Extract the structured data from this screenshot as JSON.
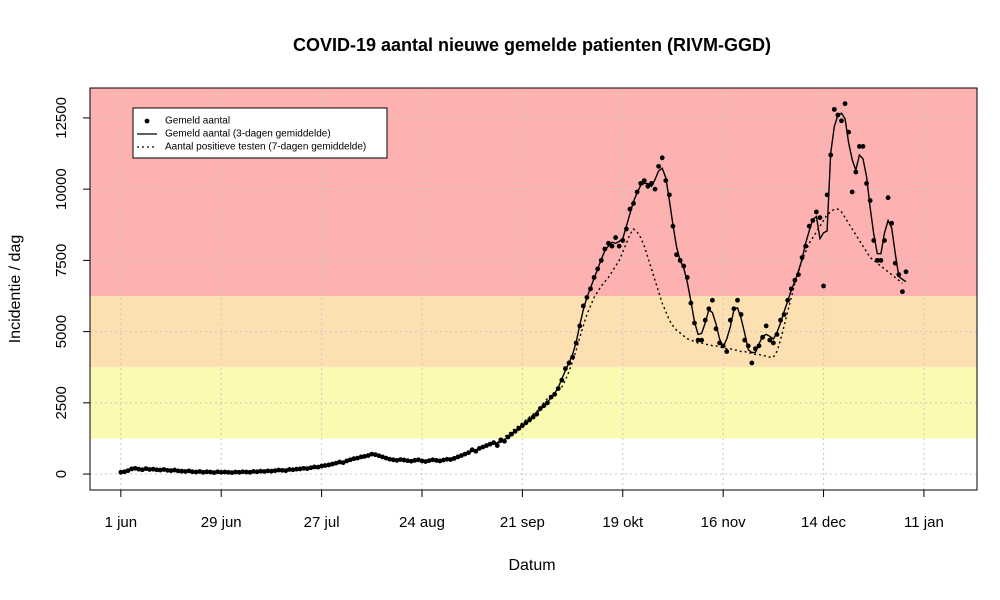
{
  "chart_data": {
    "type": "line",
    "title": "COVID-19 aantal nieuwe gemelde patienten  (RIVM-GGD)",
    "x_label": "Datum",
    "y_label": "Incidentie / dag",
    "xlim": [
      -8.6,
      238.8
    ],
    "ylim": [
      -560,
      13550
    ],
    "xticks": [
      {
        "value": 0,
        "label": "1 jun"
      },
      {
        "value": 28,
        "label": "29 jun"
      },
      {
        "value": 56,
        "label": "27 jul"
      },
      {
        "value": 84,
        "label": "24 aug"
      },
      {
        "value": 112,
        "label": "21 sep"
      },
      {
        "value": 140,
        "label": "19 okt"
      },
      {
        "value": 168,
        "label": "16 nov"
      },
      {
        "value": 196,
        "label": "14 dec"
      },
      {
        "value": 224,
        "label": "11 jan"
      }
    ],
    "yticks": [
      0,
      2500,
      5000,
      7500,
      10000,
      12500
    ],
    "grid": true,
    "legend": "top-left",
    "bands": [
      {
        "from": 1250,
        "color": "#fafab0"
      },
      {
        "from": 3750,
        "color": "#fde0b1"
      },
      {
        "from": 6250,
        "color": "#fdb1b1"
      }
    ],
    "x": [
      0,
      1,
      2,
      3,
      4,
      5,
      6,
      7,
      8,
      9,
      10,
      11,
      12,
      13,
      14,
      15,
      16,
      17,
      18,
      19,
      20,
      21,
      22,
      23,
      24,
      25,
      26,
      27,
      28,
      29,
      30,
      31,
      32,
      33,
      34,
      35,
      36,
      37,
      38,
      39,
      40,
      41,
      42,
      43,
      44,
      45,
      46,
      47,
      48,
      49,
      50,
      51,
      52,
      53,
      54,
      55,
      56,
      57,
      58,
      59,
      60,
      61,
      62,
      63,
      64,
      65,
      66,
      67,
      68,
      69,
      70,
      71,
      72,
      73,
      74,
      75,
      76,
      77,
      78,
      79,
      80,
      81,
      82,
      83,
      84,
      85,
      86,
      87,
      88,
      89,
      90,
      91,
      92,
      93,
      94,
      95,
      96,
      97,
      98,
      99,
      100,
      101,
      102,
      103,
      104,
      105,
      106,
      107,
      108,
      109,
      110,
      111,
      112,
      113,
      114,
      115,
      116,
      117,
      118,
      119,
      120,
      121,
      122,
      123,
      124,
      125,
      126,
      127,
      128,
      129,
      130,
      131,
      132,
      133,
      134,
      135,
      136,
      137,
      138,
      139,
      140,
      141,
      142,
      143,
      144,
      145,
      146,
      147,
      148,
      149,
      150,
      151,
      152,
      153,
      154,
      155,
      156,
      157,
      158,
      159,
      160,
      161,
      162,
      163,
      164,
      165,
      166,
      167,
      168,
      169,
      170,
      171,
      172,
      173,
      174,
      175,
      176,
      177,
      178,
      179,
      180,
      181,
      182,
      183,
      184,
      185,
      186,
      187,
      188,
      189,
      190,
      191,
      192,
      193,
      194,
      195,
      196,
      197,
      198,
      199,
      200,
      201,
      202,
      203,
      204,
      205,
      206,
      207,
      208,
      209,
      210,
      211,
      212,
      213,
      214,
      215,
      216,
      217,
      218,
      219
    ],
    "series": [
      {
        "name": "Gemeld aantal",
        "mode": "points",
        "color": "#000000",
        "values": [
          60,
          80,
          120,
          180,
          200,
          170,
          150,
          190,
          160,
          170,
          150,
          140,
          160,
          130,
          120,
          140,
          110,
          100,
          90,
          110,
          80,
          70,
          90,
          60,
          80,
          70,
          50,
          80,
          60,
          70,
          60,
          50,
          70,
          60,
          80,
          70,
          60,
          90,
          80,
          100,
          90,
          110,
          100,
          120,
          140,
          130,
          120,
          160,
          150,
          170,
          180,
          200,
          190,
          220,
          250,
          240,
          280,
          300,
          320,
          350,
          380,
          420,
          400,
          460,
          500,
          540,
          560,
          600,
          620,
          650,
          700,
          680,
          640,
          600,
          560,
          520,
          500,
          480,
          510,
          490,
          470,
          450,
          480,
          500,
          460,
          440,
          470,
          500,
          480,
          460,
          490,
          520,
          510,
          550,
          600,
          650,
          700,
          750,
          850,
          800,
          900,
          950,
          1000,
          1050,
          1100,
          1000,
          1200,
          1150,
          1300,
          1400,
          1500,
          1600,
          1700,
          1800,
          1900,
          2000,
          2100,
          2300,
          2400,
          2500,
          2700,
          2800,
          3000,
          3300,
          3700,
          3900,
          4100,
          4600,
          5200,
          5900,
          6200,
          6500,
          6900,
          7200,
          7500,
          7900,
          8100,
          8000,
          8300,
          8000,
          8200,
          8600,
          9300,
          9500,
          9900,
          10200,
          10300,
          10100,
          10200,
          10000,
          10800,
          11100,
          10300,
          9800,
          8700,
          7700,
          7500,
          7300,
          6900,
          6000,
          5300,
          4700,
          4700,
          5400,
          5800,
          6100,
          5100,
          4600,
          4500,
          4300,
          5400,
          5800,
          6100,
          5600,
          4700,
          4500,
          3900,
          4400,
          4500,
          4800,
          5200,
          4700,
          4600,
          4900,
          5400,
          5600,
          6100,
          6500,
          6800,
          7000,
          7600,
          8000,
          8700,
          8900,
          9200,
          9000,
          6600,
          9800,
          11200,
          12800,
          12600,
          12400,
          13000,
          12000,
          9900,
          10600,
          11500,
          11500,
          10200,
          9600,
          8200,
          7500,
          7500,
          8200,
          9700,
          8800,
          7400,
          7000,
          6400,
          7100
        ]
      },
      {
        "name": "Gemeld aantal (3-dagen gemiddelde)",
        "mode": "solid",
        "color": "#000000",
        "values": [
          85,
          120,
          160,
          185,
          185,
          170,
          170,
          165,
          175,
          160,
          155,
          150,
          145,
          135,
          130,
          125,
          115,
          100,
          100,
          95,
          85,
          80,
          75,
          75,
          70,
          65,
          65,
          65,
          70,
          65,
          60,
          60,
          60,
          70,
          70,
          70,
          75,
          75,
          90,
          90,
          100,
          100,
          110,
          120,
          130,
          130,
          135,
          145,
          160,
          165,
          185,
          190,
          205,
          220,
          245,
          255,
          275,
          300,
          325,
          350,
          385,
          400,
          425,
          455,
          500,
          535,
          565,
          595,
          625,
          655,
          675,
          675,
          640,
          600,
          560,
          525,
          500,
          495,
          495,
          490,
          470,
          465,
          475,
          480,
          465,
          455,
          470,
          485,
          480,
          475,
          490,
          505,
          525,
          555,
          600,
          650,
          700,
          765,
          800,
          850,
          885,
          950,
          1000,
          1050,
          1050,
          1100,
          1115,
          1215,
          1285,
          1400,
          1500,
          1600,
          1700,
          1800,
          1900,
          2000,
          2135,
          2265,
          2400,
          2535,
          2665,
          2835,
          3035,
          3335,
          3635,
          3900,
          4200,
          4635,
          5235,
          5765,
          6200,
          6535,
          6865,
          7200,
          7535,
          7835,
          8000,
          8135,
          8100,
          8165,
          8265,
          8700,
          9135,
          9565,
          9865,
          10135,
          10200,
          10200,
          10100,
          10335,
          10635,
          10735,
          10400,
          9600,
          8735,
          7965,
          7500,
          7235,
          6735,
          6065,
          5335,
          4900,
          4935,
          5300,
          5765,
          5665,
          5265,
          4735,
          4465,
          4735,
          5165,
          5765,
          5835,
          5465,
          4935,
          4365,
          4265,
          4265,
          4565,
          4835,
          4900,
          4835,
          4735,
          4965,
          5300,
          5700,
          6065,
          6465,
          6765,
          7135,
          7535,
          8100,
          8535,
          8935,
          9035,
          8265,
          8465,
          8535,
          11265,
          12200,
          12600,
          12665,
          12465,
          11635,
          11035,
          10665,
          11200,
          11065,
          10435,
          9335,
          8435,
          7735,
          7735,
          8465,
          8900,
          8635,
          7735,
          6935,
          6835,
          6750
        ]
      },
      {
        "name": "Aantal positieve testen (7-dagen gemiddelde)",
        "mode": "dotted",
        "color": "#000000",
        "values": [
          null,
          null,
          null,
          null,
          null,
          null,
          null,
          null,
          null,
          null,
          null,
          null,
          null,
          null,
          null,
          null,
          null,
          null,
          null,
          null,
          null,
          null,
          null,
          null,
          null,
          null,
          null,
          null,
          null,
          null,
          null,
          null,
          null,
          null,
          null,
          null,
          null,
          null,
          null,
          null,
          null,
          null,
          null,
          null,
          null,
          null,
          null,
          null,
          null,
          null,
          null,
          null,
          null,
          null,
          null,
          null,
          null,
          null,
          null,
          null,
          null,
          null,
          null,
          null,
          null,
          null,
          null,
          null,
          null,
          null,
          null,
          null,
          null,
          null,
          null,
          null,
          null,
          null,
          null,
          null,
          null,
          null,
          null,
          null,
          null,
          null,
          null,
          null,
          null,
          null,
          null,
          null,
          null,
          null,
          null,
          null,
          null,
          null,
          null,
          null,
          null,
          null,
          null,
          null,
          null,
          1100,
          1200,
          1300,
          1400,
          1500,
          1600,
          1700,
          1800,
          1900,
          2000,
          2100,
          2200,
          2350,
          2500,
          2650,
          2750,
          2850,
          2950,
          3050,
          3300,
          3600,
          3950,
          4350,
          4800,
          5200,
          5600,
          5900,
          6200,
          6400,
          6600,
          6750,
          6900,
          7100,
          7300,
          7500,
          7800,
          8100,
          8400,
          8600,
          8500,
          8300,
          8000,
          7600,
          7200,
          6800,
          6400,
          6000,
          5700,
          5400,
          5200,
          5050,
          4950,
          4850,
          4750,
          4700,
          4650,
          4600,
          4600,
          4550,
          4550,
          4500,
          4500,
          4450,
          4450,
          4400,
          4400,
          4350,
          4350,
          4300,
          4300,
          4250,
          4250,
          4200,
          4200,
          4150,
          4150,
          4100,
          4100,
          4300,
          4700,
          5200,
          5700,
          6200,
          6700,
          7100,
          7500,
          7800,
          8100,
          8300,
          8500,
          8700,
          8900,
          9100,
          9200,
          9300,
          9300,
          9200,
          9000,
          8800,
          8600,
          8400,
          8200,
          8000,
          7800,
          7600,
          7500,
          7400,
          7300,
          7200,
          7100,
          7000,
          6900,
          6800,
          6700,
          null
        ]
      }
    ]
  }
}
